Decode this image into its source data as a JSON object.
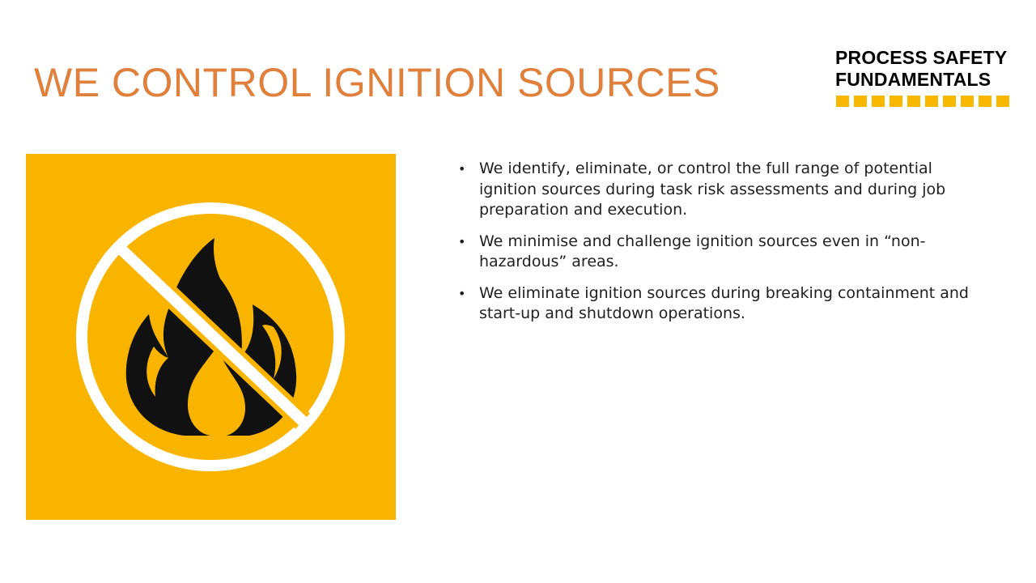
{
  "slide": {
    "title": "WE CONTROL IGNITION SOURCES"
  },
  "logo": {
    "line1": "PROCESS SAFETY",
    "line2": "FUNDAMENTALS",
    "accent_color": "#F9B800",
    "dash_count": 10
  },
  "icon": {
    "name": "no-open-flame-icon",
    "background_color": "#F9B400",
    "ring_color": "#FFFFFF",
    "flame_color": "#111111"
  },
  "bullets": [
    {
      "marker": "•",
      "text": "We identify, eliminate, or control the full range of potential ignition sources during task risk assessments and during job preparation and execution."
    },
    {
      "marker": "•",
      "text": "We minimise and challenge ignition sources even in “non-hazardous” areas."
    },
    {
      "marker": "•",
      "text": "We eliminate ignition sources during breaking containment and start-up and shutdown operations."
    }
  ],
  "colors": {
    "title": "#E0803D",
    "body_text": "#1F1F1F"
  }
}
